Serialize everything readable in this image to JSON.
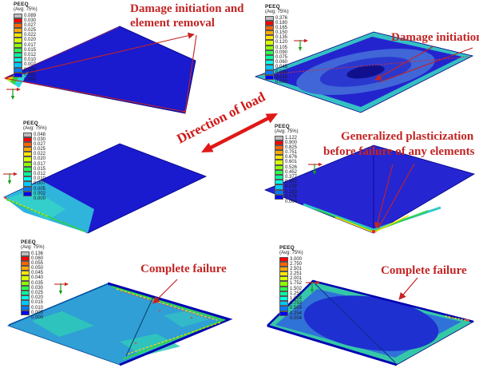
{
  "legend": {
    "title": "PEEQ",
    "subtitle": "(Avg: 75%)"
  },
  "colors": {
    "annotation_red": "#c32424",
    "load_arrow_red": "#e01818",
    "plate_blue": "#1a1ace",
    "ramp_13": [
      "#bdbdbd",
      "#ff0000",
      "#ff6400",
      "#ffaa00",
      "#ffe600",
      "#d7ff00",
      "#8cff00",
      "#2bff4e",
      "#00ff9e",
      "#00ffe8",
      "#00c8ff",
      "#0078ff",
      "#0000ff"
    ],
    "ramp_12": [
      "#ff0000",
      "#ff6400",
      "#ffaa00",
      "#ffe600",
      "#d7ff00",
      "#8cff00",
      "#2bff4e",
      "#00ff9e",
      "#00ffe8",
      "#00c8ff",
      "#0078ff",
      "#0000ff"
    ]
  },
  "panels": [
    {
      "name": "top-left",
      "legend_values": [
        "0.089",
        "0.030",
        "0.027",
        "0.025",
        "0.022",
        "0.020",
        "0.017",
        "0.015",
        "0.012",
        "0.010",
        "0.007",
        "0.005",
        "0.002",
        "0.000"
      ],
      "annotation_line1": "Damage initiation and",
      "annotation_line2": "element removal"
    },
    {
      "name": "top-right",
      "legend_values": [
        "0.376",
        "0.180",
        "0.165",
        "0.150",
        "0.135",
        "0.120",
        "0.105",
        "0.090",
        "0.075",
        "0.060",
        "0.045",
        "0.030",
        "0.015",
        "0.000"
      ],
      "annotation": "Damage initiation"
    },
    {
      "name": "middle-left",
      "legend_values": [
        "0.048",
        "0.030",
        "0.027",
        "0.025",
        "0.022",
        "0.020",
        "0.017",
        "0.015",
        "0.012",
        "0.010",
        "0.007",
        "0.005",
        "0.002",
        "0.000"
      ]
    },
    {
      "name": "middle-right",
      "legend_values": [
        "1.122",
        "0.900",
        "0.825",
        "0.751",
        "0.676",
        "0.601",
        "0.526",
        "0.452",
        "0.377",
        "0.302",
        "0.228",
        "0.153",
        "0.078",
        "0.004"
      ],
      "annotation_line1": "Generalized plasticization",
      "annotation_line2": "before failure of any elements"
    },
    {
      "name": "bottom-left",
      "legend_values": [
        "0.136",
        "0.060",
        "0.055",
        "0.050",
        "0.045",
        "0.040",
        "0.035",
        "0.030",
        "0.025",
        "0.020",
        "0.015",
        "0.010",
        "0.005",
        "0.000"
      ],
      "annotation": "Complete failure"
    },
    {
      "name": "bottom-right",
      "legend_values": [
        "3.000",
        "2.750",
        "2.501",
        "2.251",
        "2.001",
        "1.752",
        "1.502",
        "1.252",
        "1.003",
        "0.753",
        "0.503",
        "0.254",
        "0.004"
      ],
      "annotation": "Complete failure"
    }
  ],
  "load_annotation": {
    "text": "Direction of load"
  },
  "icons": {
    "view_triad": "view-triad-icon"
  }
}
